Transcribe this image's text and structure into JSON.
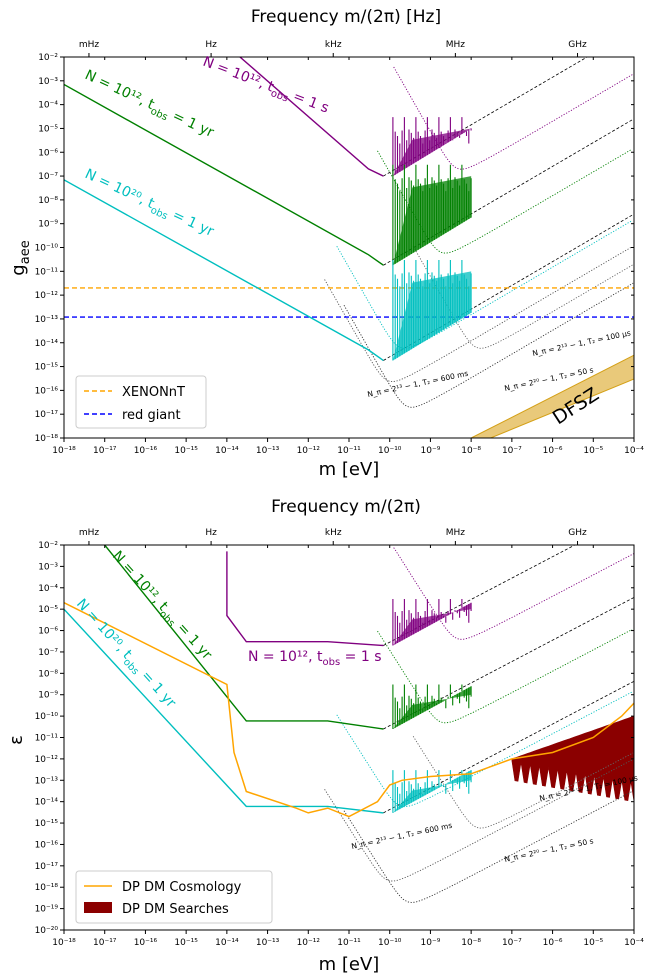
{
  "colors": {
    "purple": "#800080",
    "green": "#008000",
    "cyan": "#00bfbf",
    "orange": "#ffa500",
    "blue": "#0000ff",
    "darkred": "#8b0000",
    "dfsz_fill": "#e9c97a",
    "dfsz_edge": "#d4a017"
  },
  "chart_data": [
    {
      "type": "line",
      "title": "Frequency m/(2π) [Hz]",
      "xlabel": "m [eV]",
      "ylabel": "g_aee",
      "xscale": "log",
      "yscale": "log",
      "xlim": [
        1e-18,
        0.0001
      ],
      "ylim": [
        1e-18,
        0.01
      ],
      "top_axis_labels": [
        "mHz",
        "Hz",
        "kHz",
        "MHz",
        "GHz"
      ],
      "top_axis_masses": [
        4.1e-18,
        4.1e-15,
        4.1e-12,
        4.1e-09,
        4.1e-06
      ],
      "x_tick_labels": [
        "10⁻¹⁸",
        "10⁻¹⁷",
        "10⁻¹⁶",
        "10⁻¹⁵",
        "10⁻¹⁴",
        "10⁻¹³",
        "10⁻¹²",
        "10⁻¹¹",
        "10⁻¹⁰",
        "10⁻⁹",
        "10⁻⁸",
        "10⁻⁷",
        "10⁻⁶",
        "10⁻⁵",
        "10⁻⁴"
      ],
      "y_tick_labels": [
        "10⁻¹⁸",
        "10⁻¹⁷",
        "10⁻¹⁶",
        "10⁻¹⁵",
        "10⁻¹⁴",
        "10⁻¹³",
        "10⁻¹²",
        "10⁻¹¹",
        "10⁻¹⁰",
        "10⁻⁹",
        "10⁻⁸",
        "10⁻⁷",
        "10⁻⁶",
        "10⁻⁵",
        "10⁻⁴",
        "10⁻³",
        "10⁻²"
      ],
      "series": [
        {
          "name": "N = 10¹², t_obs = 1 s",
          "color": "purple",
          "x": [
            1e-14,
            3e-11,
            7e-11
          ],
          "y": [
            0.03,
            2e-07,
            1e-07
          ],
          "spike_end": 1e-08,
          "spike_top": 1e-05
        },
        {
          "name": "N = 10¹², t_obs = 1 yr",
          "color": "green",
          "x": [
            1e-18,
            3e-11,
            7e-11
          ],
          "y": [
            0.0007,
            5e-11,
            1.8e-11
          ],
          "spike_end": 1e-08,
          "spike_top": 1e-07
        },
        {
          "name": "N = 10²⁰, t_obs = 1 yr",
          "color": "cyan",
          "x": [
            1e-18,
            3e-11,
            7e-11
          ],
          "y": [
            7e-08,
            5e-15,
            1.8e-15
          ],
          "spike_end": 1e-08,
          "spike_top": 1e-11
        }
      ],
      "hlines": [
        {
          "name": "XENONnT",
          "y": 2e-12,
          "color": "orange"
        },
        {
          "name": "red giant",
          "y": 1.2e-13,
          "color": "blue"
        }
      ],
      "annotations": [
        "N_π = 2¹³ − 1, T₂ = 100 μs",
        "N_π = 2¹³ − 1, T₂ = 600 ms",
        "N_π = 2²⁰ − 1, T₂ = 50 s",
        "DFSZ"
      ],
      "legend": "lower-left"
    },
    {
      "type": "line",
      "title": "Frequency m/(2π)",
      "xlabel": "m [eV]",
      "ylabel": "ε",
      "xscale": "log",
      "yscale": "log",
      "xlim": [
        1e-18,
        0.0001
      ],
      "ylim": [
        1e-20,
        0.01
      ],
      "top_axis_labels": [
        "mHz",
        "Hz",
        "kHz",
        "MHz",
        "GHz"
      ],
      "x_tick_labels": [
        "10⁻¹⁸",
        "10⁻¹⁷",
        "10⁻¹⁶",
        "10⁻¹⁵",
        "10⁻¹⁴",
        "10⁻¹³",
        "10⁻¹²",
        "10⁻¹¹",
        "10⁻¹⁰",
        "10⁻⁹",
        "10⁻⁸",
        "10⁻⁷",
        "10⁻⁶",
        "10⁻⁵",
        "10⁻⁴"
      ],
      "y_tick_labels": [
        "10⁻²⁰",
        "10⁻¹⁹",
        "10⁻¹⁸",
        "10⁻¹⁷",
        "10⁻¹⁶",
        "10⁻¹⁵",
        "10⁻¹⁴",
        "10⁻¹³",
        "10⁻¹²",
        "10⁻¹¹",
        "10⁻¹⁰",
        "10⁻⁹",
        "10⁻⁸",
        "10⁻⁷",
        "10⁻⁶",
        "10⁻⁵",
        "10⁻⁴",
        "10⁻³",
        "10⁻²"
      ],
      "series": [
        {
          "name": "N = 10¹², t_obs = 1 s",
          "color": "purple",
          "x": [
            1e-14,
            1e-14,
            3e-14,
            3e-12,
            7e-11
          ],
          "y": [
            0.005,
            5e-06,
            3e-07,
            3e-07,
            2e-07
          ],
          "spike_end": 1e-08,
          "spike_top": 1e-05
        },
        {
          "name": "N = 10¹², t_obs = 1 yr",
          "color": "green",
          "x": [
            1e-17,
            3e-14,
            3e-12,
            7e-11
          ],
          "y": [
            0.01,
            6e-11,
            6e-11,
            2.5e-11
          ],
          "spike_end": 1e-08,
          "spike_top": 1e-09
        },
        {
          "name": "N = 10²⁰, t_obs = 1 yr",
          "color": "cyan",
          "x": [
            1e-18,
            3e-14,
            3e-12,
            7e-11
          ],
          "y": [
            1e-05,
            6e-15,
            6e-15,
            3e-15
          ],
          "spike_end": 1e-08,
          "spike_top": 1e-13
        },
        {
          "name": "DP DM Cosmology",
          "color": "orange",
          "x": [
            1e-18,
            1e-14,
            1.5e-14,
            3e-14,
            5e-13,
            1e-12,
            3e-12,
            1e-11,
            5e-11,
            1e-10,
            2e-10,
            1e-09,
            1e-08,
            1e-07,
            1e-06,
            1e-05,
            5e-05,
            0.0001
          ],
          "y": [
            2e-05,
            3e-09,
            2e-12,
            3e-14,
            5e-15,
            3e-15,
            5e-15,
            2e-15,
            1e-14,
            6e-14,
            1e-13,
            1.5e-13,
            2e-13,
            1e-12,
            2e-12,
            1e-11,
            1e-10,
            4e-10
          ]
        },
        {
          "name": "DP DM Searches",
          "color": "darkred",
          "x": [
            1e-07,
            0.0001
          ],
          "y_top": [
            1e-12,
            1e-10
          ],
          "y_bottom": [
            1e-13,
            1e-14
          ]
        }
      ],
      "annotations": [
        "N_π = 2¹³ − 1, T₂ = 100 μs",
        "N_π = 2¹³ − 1, T₂ = 600 ms",
        "N_π = 2²⁰ − 1, T₂ = 50 s"
      ],
      "legend": "lower-left"
    }
  ],
  "top": {
    "title": "Frequency m/(2π) [Hz]",
    "xlabel": "m [eV]",
    "ylabel": "g",
    "ylabel_sub": "aee",
    "label_purple": "N = 10¹², t",
    "label_green": "N = 10¹², t",
    "label_cyan": "N = 10²⁰, t",
    "sub_obs": "obs",
    "val_purple": " = 1 s",
    "val_green": " = 1 yr",
    "val_cyan": " = 1 yr",
    "ann1": "N_π = 2¹³ − 1, T₂ = 100 μs",
    "ann2": "N_π = 2¹³ − 1, T₂ = 600 ms",
    "ann3": "N_π = 2²⁰ − 1, T₂ = 50 s",
    "dfsz": "DFSZ",
    "legend1": "XENONnT",
    "legend2": "red giant"
  },
  "bottom": {
    "title": "Frequency m/(2π)",
    "xlabel": "m [eV]",
    "ylabel": "ε",
    "label_purple": "N = 10¹², t",
    "label_green": "N = 10¹², t",
    "label_cyan": "N = 10²⁰, t",
    "sub_obs": "obs",
    "val_purple": " = 1 s",
    "val_green": " = 1 yr",
    "val_cyan": " = 1 yr",
    "ann1": "N_π = 2¹³ − 1, T₂ = 100 μs",
    "ann2": "N_π = 2¹³ − 1, T₂ = 600 ms",
    "ann3": "N_π = 2²⁰ − 1, T₂ = 50 s",
    "legend1": "DP DM Cosmology",
    "legend2": "DP DM Searches"
  }
}
